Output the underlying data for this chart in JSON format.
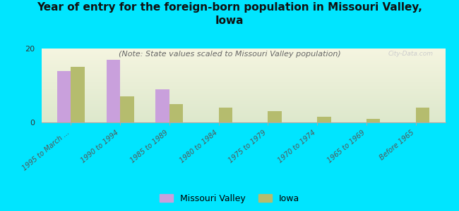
{
  "title": "Year of entry for the foreign-born population in Missouri Valley,\nIowa",
  "subtitle": "(Note: State values scaled to Missouri Valley population)",
  "background_color": "#00e5ff",
  "plot_bg_color": "#eef2e0",
  "categories": [
    "1995 to March ...",
    "1990 to 1994",
    "1985 to 1989",
    "1980 to 1984",
    "1975 to 1979",
    "1970 to 1974",
    "1965 to 1969",
    "Before 1965"
  ],
  "missouri_valley": [
    14,
    17,
    9,
    0,
    0,
    0,
    0,
    0
  ],
  "iowa": [
    15,
    7,
    5,
    4,
    3,
    1.5,
    1,
    4
  ],
  "missouri_color": "#c9a0dc",
  "iowa_color": "#b5bc6e",
  "ylim": [
    0,
    20
  ],
  "yticks": [
    0,
    20
  ],
  "bar_width": 0.28,
  "watermark": "City-Data.com",
  "legend_missouri": "Missouri Valley",
  "legend_iowa": "Iowa",
  "title_fontsize": 11,
  "subtitle_fontsize": 8
}
